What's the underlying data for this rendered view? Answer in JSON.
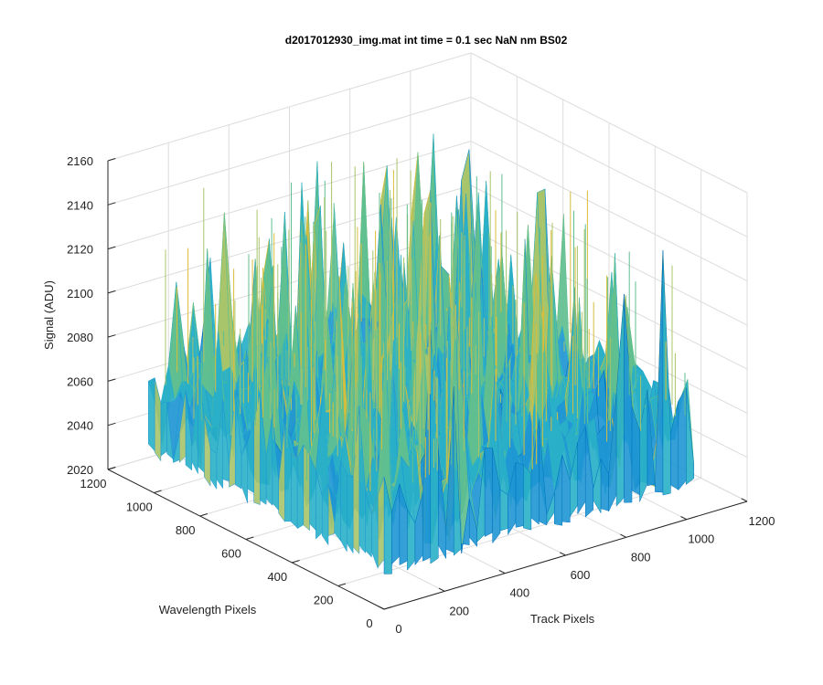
{
  "chart_data": {
    "type": "surface",
    "title": "d2017012930_img.mat int time = 0.1 sec  NaN nm BS02",
    "xlabel": "Track Pixels",
    "ylabel": "Wavelength Pixels",
    "zlabel": "Signal (ADU)",
    "xlim": [
      0,
      1200
    ],
    "ylim": [
      0,
      1200
    ],
    "zlim": [
      2020,
      2160
    ],
    "x_ticks": [
      "0",
      "200",
      "400",
      "600",
      "800",
      "1000",
      "1200"
    ],
    "y_ticks": [
      "0",
      "200",
      "400",
      "600",
      "800",
      "1000",
      "1200"
    ],
    "z_ticks": [
      "2020",
      "2040",
      "2060",
      "2080",
      "2100",
      "2120",
      "2140",
      "2160"
    ],
    "data_extent": {
      "x": [
        0,
        1024
      ],
      "y": [
        0,
        1024
      ]
    },
    "signal_typical": [
      2040,
      2110
    ],
    "signal_peak": 2150,
    "colormap": [
      "#0072bd",
      "#1f96d4",
      "#29b0c8",
      "#5fbf8f",
      "#a8c46a",
      "#d8bd3a"
    ],
    "grid": true
  }
}
